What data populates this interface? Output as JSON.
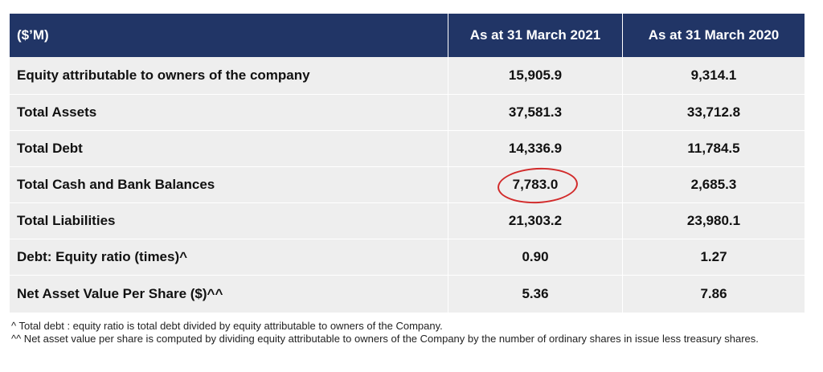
{
  "table": {
    "headers": [
      "($’M)",
      "As at 31 March 2021",
      "As at 31 March 2020"
    ],
    "rows": [
      {
        "label": "Equity attributable to owners of the company",
        "v2021": "15,905.9",
        "v2020": "9,314.1"
      },
      {
        "label": "Total Assets",
        "v2021": "37,581.3",
        "v2020": "33,712.8"
      },
      {
        "label": "Total Debt",
        "v2021": "14,336.9",
        "v2020": "11,784.5"
      },
      {
        "label": "Total Cash and Bank Balances",
        "v2021": "7,783.0",
        "v2020": "2,685.3"
      },
      {
        "label": "Total Liabilities",
        "v2021": "21,303.2",
        "v2020": "23,980.1"
      },
      {
        "label": "Debt: Equity ratio (times)^",
        "v2021": "0.90",
        "v2020": "1.27"
      },
      {
        "label": "Net Asset Value Per Share ($)^^",
        "v2021": "5.36",
        "v2020": "7.86"
      }
    ]
  },
  "notes": [
    "^ Total debt : equity ratio is total debt divided by equity attributable to owners of the Company.",
    "^^ Net asset value per share is computed by dividing equity attributable to owners of the Company by the number of ordinary shares in issue less treasury shares."
  ],
  "highlight_color": "#d22b2b",
  "header_color": "#213566"
}
